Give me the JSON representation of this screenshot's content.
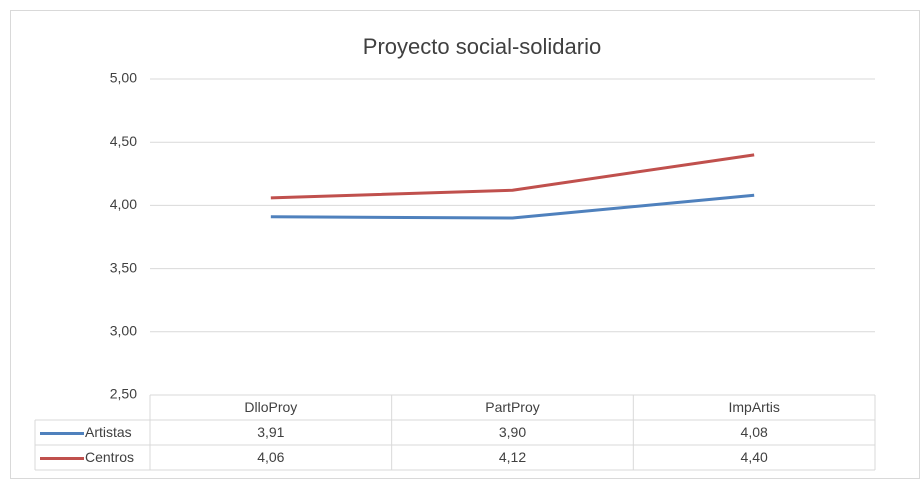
{
  "chart_data": {
    "type": "line",
    "title": "Proyecto social-solidario",
    "categories": [
      "DlloProy",
      "PartProy",
      "ImpArtis"
    ],
    "series": [
      {
        "name": "Artistas",
        "color": "#4f81bd",
        "values": [
          3.91,
          3.9,
          4.08
        ],
        "value_labels": [
          "3,91",
          "3,90",
          "4,08"
        ]
      },
      {
        "name": "Centros",
        "color": "#c0504d",
        "values": [
          4.06,
          4.12,
          4.4
        ],
        "value_labels": [
          "4,06",
          "4,12",
          "4,40"
        ]
      }
    ],
    "ylim": [
      2.5,
      5.0
    ],
    "yticks": [
      {
        "value": 2.5,
        "label": "2,50"
      },
      {
        "value": 3.0,
        "label": "3,00"
      },
      {
        "value": 3.5,
        "label": "3,50"
      },
      {
        "value": 4.0,
        "label": "4,00"
      },
      {
        "value": 4.5,
        "label": "4,50"
      },
      {
        "value": 5.0,
        "label": "5,00"
      }
    ],
    "grid": true
  }
}
